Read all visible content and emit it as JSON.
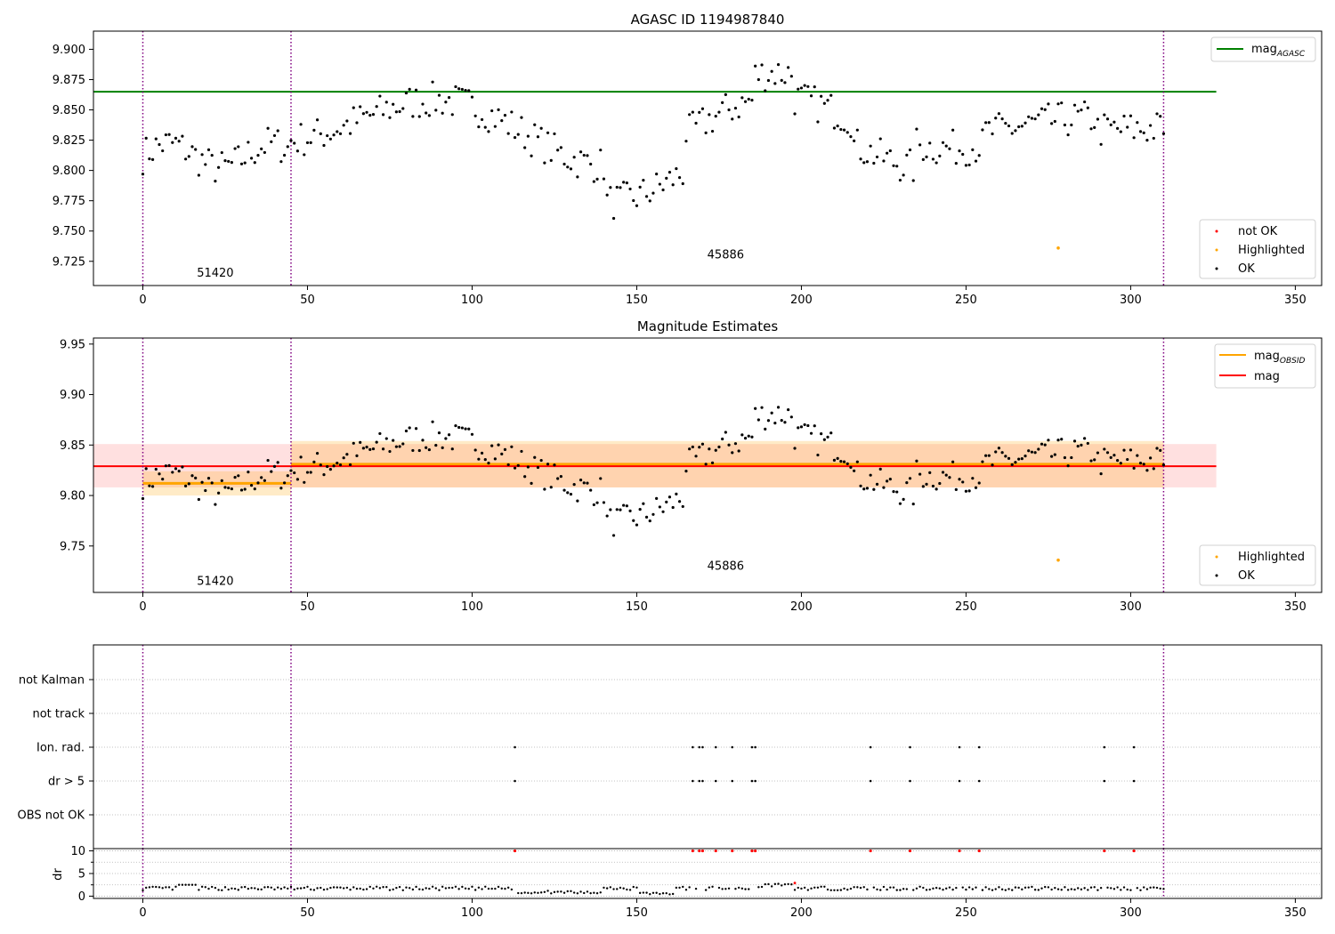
{
  "chart_data": [
    {
      "id": "agasc",
      "type": "scatter",
      "title": "AGASC ID 1194987840",
      "xlim": [
        -15,
        358
      ],
      "ylim": [
        9.705,
        9.915
      ],
      "xticks": [
        0,
        50,
        100,
        150,
        200,
        250,
        300,
        350
      ],
      "yticks": [
        9.725,
        9.75,
        9.775,
        9.8,
        9.825,
        9.85,
        9.875,
        9.9
      ],
      "ytick_labels": [
        "9.725",
        "9.750",
        "9.775",
        "9.800",
        "9.825",
        "9.850",
        "9.875",
        "9.900"
      ],
      "obs_boundaries": [
        0,
        45,
        310
      ],
      "obs_labels": [
        {
          "text": "51420",
          "x": 22,
          "y": 9.716
        },
        {
          "text": "45886",
          "x": 177,
          "y": 9.731
        }
      ],
      "mag_agasc": {
        "value": 9.865,
        "x": [
          -15,
          326
        ]
      },
      "highlighted": [
        {
          "x": 278,
          "y": 9.736
        }
      ],
      "legends": [
        {
          "position": "upper right",
          "entries": [
            {
              "label": "mag",
              "sub": "AGASC",
              "color": "#008000",
              "kind": "line"
            }
          ]
        },
        {
          "position": "lower right",
          "entries": [
            {
              "label": "not OK",
              "color": "#ff0000",
              "kind": "dot"
            },
            {
              "label": "Highlighted",
              "color": "#ffa500",
              "kind": "dot"
            },
            {
              "label": "OK",
              "color": "#000000",
              "kind": "dot"
            }
          ]
        }
      ]
    },
    {
      "id": "estimates",
      "type": "scatter",
      "title": "Magnitude Estimates",
      "xlim": [
        -15,
        358
      ],
      "ylim": [
        9.704,
        9.956
      ],
      "xticks": [
        0,
        50,
        100,
        150,
        200,
        250,
        300,
        350
      ],
      "yticks": [
        9.75,
        9.8,
        9.85,
        9.9,
        9.95
      ],
      "ytick_labels": [
        "9.75",
        "9.80",
        "9.85",
        "9.90",
        "9.95"
      ],
      "obs_boundaries": [
        0,
        45,
        310
      ],
      "obs_labels": [
        {
          "text": "51420",
          "x": 22,
          "y": 9.716
        },
        {
          "text": "45886",
          "x": 177,
          "y": 9.731
        }
      ],
      "mag": {
        "value": 9.829,
        "band": [
          9.808,
          9.851
        ],
        "x": [
          -15,
          326
        ]
      },
      "mag_obsid": [
        {
          "x": [
            0,
            45
          ],
          "value": 9.812,
          "band": [
            9.8,
            9.824
          ]
        },
        {
          "x": [
            45,
            310
          ],
          "value": 9.831,
          "band": [
            9.808,
            9.854
          ]
        }
      ],
      "highlighted": [
        {
          "x": 278,
          "y": 9.736
        }
      ],
      "legends": [
        {
          "position": "upper right",
          "entries": [
            {
              "label": "mag",
              "sub": "OBSID",
              "color": "#ffa500",
              "kind": "line"
            },
            {
              "label": "mag",
              "color": "#ff0000",
              "kind": "line"
            }
          ]
        },
        {
          "position": "lower right",
          "entries": [
            {
              "label": "Highlighted",
              "color": "#ffa500",
              "kind": "dot"
            },
            {
              "label": "OK",
              "color": "#000000",
              "kind": "dot"
            }
          ]
        }
      ]
    },
    {
      "id": "flags",
      "type": "scatter",
      "xlim": [
        -15,
        358
      ],
      "categories": [
        "not Kalman",
        "not track",
        "Ion. rad.",
        "dr > 5",
        "OBS not OK"
      ],
      "obs_boundaries": [
        0,
        45,
        310
      ],
      "flagged_x": {
        "Ion. rad.": [
          113,
          167,
          169,
          170,
          174,
          179,
          185,
          186,
          221,
          233,
          248,
          254,
          292,
          301
        ],
        "dr > 5": [
          113,
          167,
          169,
          170,
          174,
          179,
          185,
          186,
          221,
          233,
          248,
          254,
          292,
          301
        ]
      }
    },
    {
      "id": "dr",
      "type": "scatter",
      "ylabel": "dr",
      "xlim": [
        -15,
        358
      ],
      "ylim": [
        -0.5,
        10.5
      ],
      "xticks": [
        0,
        50,
        100,
        150,
        200,
        250,
        300,
        350
      ],
      "yticks": [
        0,
        5,
        10
      ],
      "obs_boundaries": [
        0,
        45,
        310
      ],
      "high_dr_x": [
        113,
        167,
        169,
        170,
        174,
        179,
        185,
        186,
        221,
        233,
        248,
        254,
        292,
        301
      ],
      "high_dr_value": 10,
      "red_point": {
        "x": 198,
        "y": 2.9
      }
    }
  ]
}
